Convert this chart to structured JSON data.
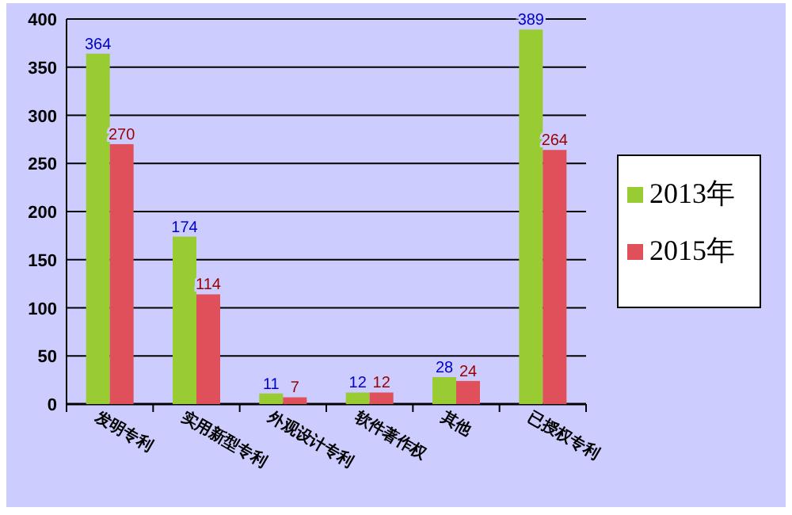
{
  "chart_data": {
    "type": "bar",
    "categories": [
      "发明专利",
      "实用新型专利",
      "外观设计专利",
      "软件著作权",
      "其他",
      "已授权专利"
    ],
    "series": [
      {
        "name": "2013年",
        "color": "#99cc33",
        "values": [
          364,
          174,
          11,
          12,
          28,
          389
        ]
      },
      {
        "name": "2015年",
        "color": "#e0505a",
        "values": [
          270,
          114,
          7,
          12,
          24,
          264
        ]
      }
    ],
    "ylim": [
      0,
      400
    ],
    "yticks": [
      0,
      50,
      100,
      150,
      200,
      250,
      300,
      350,
      400
    ],
    "grid": "y",
    "data_labels": true,
    "legend": "right"
  }
}
